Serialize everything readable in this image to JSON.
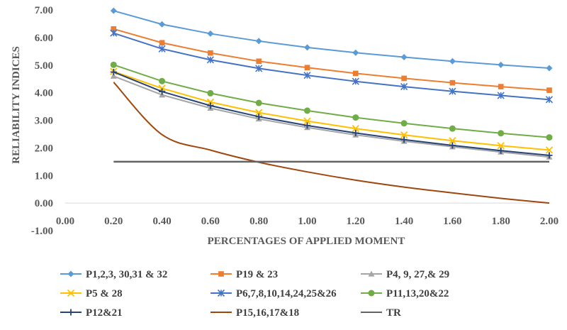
{
  "chart_data": {
    "type": "line",
    "xlabel": "PERCENTAGES OF APPLIED MOMENT",
    "ylabel": "RELIABILITY INDICES",
    "xlim": [
      0,
      2
    ],
    "ylim": [
      -1,
      7
    ],
    "x_ticks": [
      "0.00",
      "0.20",
      "0.40",
      "0.60",
      "0.80",
      "1.00",
      "1.20",
      "1.40",
      "1.60",
      "1.80",
      "2.00"
    ],
    "y_ticks": [
      "-1.00",
      "0.00",
      "1.00",
      "2.00",
      "3.00",
      "4.00",
      "5.00",
      "6.00",
      "7.00"
    ],
    "grid": false,
    "legend_position": "bottom",
    "x": [
      0.2,
      0.4,
      0.6,
      0.8,
      1.0,
      1.2,
      1.4,
      1.6,
      1.8,
      2.0
    ],
    "series": [
      {
        "name": "P1,2,3, 30,31 & 32",
        "color": "#5b9bd5",
        "marker": "diamond",
        "values": [
          6.97,
          6.48,
          6.14,
          5.87,
          5.64,
          5.45,
          5.29,
          5.14,
          5.01,
          4.89
        ]
      },
      {
        "name": "P19 & 23",
        "color": "#ed7d31",
        "marker": "square",
        "values": [
          6.31,
          5.81,
          5.44,
          5.14,
          4.91,
          4.7,
          4.52,
          4.36,
          4.22,
          4.09
        ]
      },
      {
        "name": "P4, 9, 27,& 29",
        "color": "#a5a5a5",
        "marker": "triangle",
        "values": [
          4.6,
          3.92,
          3.44,
          3.05,
          2.74,
          2.47,
          2.24,
          2.04,
          1.85,
          1.67
        ]
      },
      {
        "name": "P5 & 28",
        "color": "#ffc000",
        "marker": "x",
        "values": [
          4.77,
          4.16,
          3.66,
          3.28,
          2.97,
          2.7,
          2.47,
          2.26,
          2.08,
          1.92
        ]
      },
      {
        "name": "P6,7,8,10,14,24,25&26",
        "color": "#4472c4",
        "marker": "star",
        "values": [
          6.16,
          5.59,
          5.19,
          4.88,
          4.63,
          4.41,
          4.22,
          4.05,
          3.9,
          3.75
        ]
      },
      {
        "name": "P11,13,20&22",
        "color": "#70ad47",
        "marker": "circle",
        "values": [
          5.01,
          4.42,
          3.98,
          3.63,
          3.35,
          3.1,
          2.89,
          2.7,
          2.53,
          2.38
        ]
      },
      {
        "name": "P12&21",
        "color": "#264478",
        "marker": "plus",
        "values": [
          4.75,
          4.04,
          3.53,
          3.13,
          2.81,
          2.54,
          2.3,
          2.09,
          1.9,
          1.73
        ]
      },
      {
        "name": "P15,16,17&18",
        "color": "#9e480e",
        "marker": "none",
        "values": [
          4.38,
          2.48,
          1.92,
          1.48,
          1.13,
          0.83,
          0.58,
          0.37,
          0.17,
          0.0
        ]
      },
      {
        "name": "TR",
        "color": "#636363",
        "marker": "none",
        "values": [
          1.5,
          1.5,
          1.5,
          1.5,
          1.5,
          1.5,
          1.5,
          1.5,
          1.5,
          1.5
        ]
      }
    ]
  }
}
